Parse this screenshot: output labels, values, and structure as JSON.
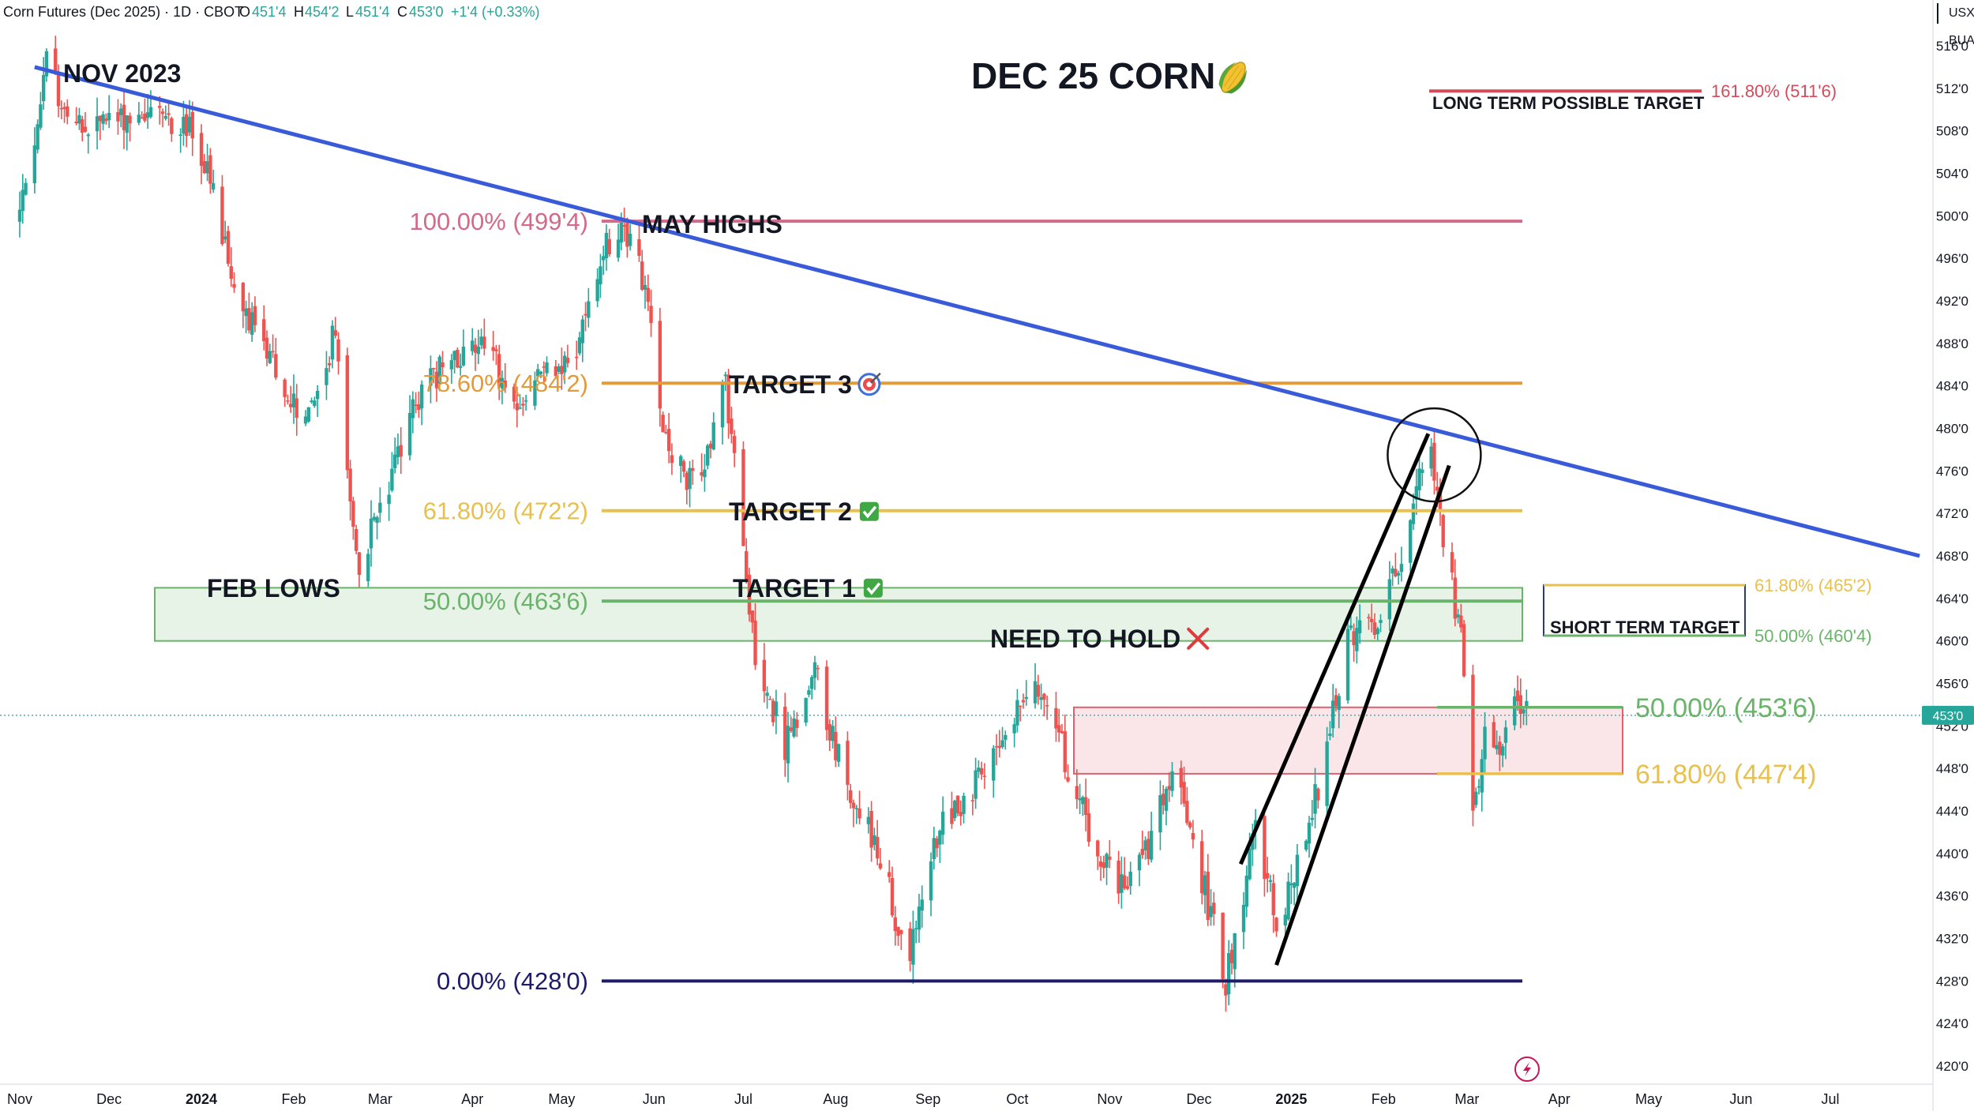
{
  "header": {
    "symbol": "Corn Futures (Dec 2025) · 1D · CBOT",
    "o_label": "O",
    "o_value": "451'4",
    "h_label": "H",
    "h_value": "454'2",
    "l_label": "L",
    "l_value": "451'4",
    "c_label": "C",
    "c_value": "453'0",
    "change": "+1'4 (+0.33%)"
  },
  "units": {
    "currency": "USX",
    "unit": "BUA"
  },
  "colors": {
    "up": "#26a69a",
    "down": "#ef5350",
    "trendline": "#3a5bd9",
    "fib_100": "#d46a8a",
    "fib_786": "#e39a3b",
    "fib_618": "#e8c04e",
    "fib_50": "#6ab36a",
    "fib_0": "#1e1b6b",
    "fib_1618": "#d64b5a"
  },
  "chart_data": {
    "type": "candlestick",
    "title": "DEC 25 CORN",
    "title_icon": "corn-icon",
    "x_axis_labels": [
      "Nov",
      "Dec",
      "2024",
      "Feb",
      "Mar",
      "Apr",
      "May",
      "Jun",
      "Jul",
      "Aug",
      "Sep",
      "Oct",
      "Nov",
      "Dec",
      "2025",
      "Feb",
      "Mar",
      "Apr",
      "May",
      "Jun",
      "Jul"
    ],
    "y_axis_labels": [
      "516'0",
      "512'0",
      "508'0",
      "504'0",
      "500'0",
      "496'0",
      "492'0",
      "488'0",
      "484'0",
      "480'0",
      "476'0",
      "472'0",
      "468'0",
      "464'0",
      "460'0",
      "456'0",
      "452'0",
      "448'0",
      "444'0",
      "440'0",
      "436'0",
      "432'0",
      "428'0",
      "424'0",
      "420'0"
    ],
    "y_range": [
      420,
      516
    ],
    "last_price": "453'0",
    "last_price_value": 453.0,
    "price_path": [
      [
        "2023-11-01",
        500.0
      ],
      [
        "2023-11-10",
        514.0
      ],
      [
        "2023-11-20",
        508.0
      ],
      [
        "2023-12-01",
        509.0
      ],
      [
        "2023-12-15",
        510.0
      ],
      [
        "2023-12-28",
        508.0
      ],
      [
        "2024-01-03",
        504.0
      ],
      [
        "2024-01-12",
        493.0
      ],
      [
        "2024-01-25",
        486.0
      ],
      [
        "2024-02-05",
        480.0
      ],
      [
        "2024-02-15",
        489.0
      ],
      [
        "2024-02-22",
        467.0
      ],
      [
        "2024-03-01",
        472.0
      ],
      [
        "2024-03-15",
        484.0
      ],
      [
        "2024-03-25",
        486.0
      ],
      [
        "2024-04-05",
        489.0
      ],
      [
        "2024-04-15",
        481.0
      ],
      [
        "2024-04-25",
        486.0
      ],
      [
        "2024-05-05",
        486.0
      ],
      [
        "2024-05-15",
        497.0
      ],
      [
        "2024-05-22",
        499.5
      ],
      [
        "2024-05-29",
        493.0
      ],
      [
        "2024-06-05",
        479.0
      ],
      [
        "2024-06-15",
        474.0
      ],
      [
        "2024-06-25",
        484.0
      ],
      [
        "2024-07-05",
        459.0
      ],
      [
        "2024-07-15",
        450.0
      ],
      [
        "2024-07-25",
        457.0
      ],
      [
        "2024-08-05",
        446.0
      ],
      [
        "2024-08-15",
        441.0
      ],
      [
        "2024-08-25",
        429.0
      ],
      [
        "2024-09-05",
        443.0
      ],
      [
        "2024-09-15",
        446.0
      ],
      [
        "2024-09-25",
        449.0
      ],
      [
        "2024-10-05",
        457.0
      ],
      [
        "2024-10-15",
        451.0
      ],
      [
        "2024-10-25",
        442.0
      ],
      [
        "2024-11-05",
        437.0
      ],
      [
        "2024-11-15",
        441.0
      ],
      [
        "2024-11-22",
        448.0
      ],
      [
        "2024-12-01",
        439.0
      ],
      [
        "2024-12-10",
        428.0
      ],
      [
        "2024-12-20",
        442.0
      ],
      [
        "2024-12-28",
        433.0
      ],
      [
        "2025-01-10",
        446.0
      ],
      [
        "2025-01-20",
        460.0
      ],
      [
        "2025-02-01",
        462.0
      ],
      [
        "2025-02-10",
        472.0
      ],
      [
        "2025-02-16",
        479.0
      ],
      [
        "2025-02-20",
        472.0
      ],
      [
        "2025-02-28",
        458.0
      ],
      [
        "2025-03-03",
        444.0
      ],
      [
        "2025-03-07",
        451.0
      ],
      [
        "2025-03-12",
        448.0
      ],
      [
        "2025-03-17",
        454.0
      ],
      [
        "2025-03-21",
        453.0
      ]
    ],
    "trendline": {
      "from": [
        "2023-11-06",
        514.0
      ],
      "to": [
        "2025-07-31",
        468.0
      ],
      "label": ""
    },
    "channel_lines": [
      {
        "from": [
          "2024-12-15",
          439.0
        ],
        "to": [
          "2025-02-16",
          479.5
        ]
      },
      {
        "from": [
          "2024-12-27",
          429.5
        ],
        "to": [
          "2025-02-23",
          476.5
        ]
      }
    ],
    "circle": {
      "center": [
        "2025-02-18",
        477.5
      ]
    },
    "fib_levels": [
      {
        "label": "100.00% (499'4)",
        "value": 499.5,
        "color": "#d46a8a",
        "extend": "long"
      },
      {
        "label": "78.60% (484'2)",
        "value": 484.25,
        "color": "#e39a3b",
        "extend": "long"
      },
      {
        "label": "61.80% (472'2)",
        "value": 472.25,
        "color": "#e8c04e",
        "extend": "long"
      },
      {
        "label": "50.00% (463'6)",
        "value": 463.75,
        "color": "#6ab36a",
        "extend": "long"
      },
      {
        "label": "0.00% (428'0)",
        "value": 428.0,
        "color": "#1e1b6b",
        "extend": "long"
      },
      {
        "label": "161.80% (511'6)",
        "value": 511.75,
        "color": "#d64b5a",
        "extend": "short"
      }
    ],
    "zones": [
      {
        "name": "need-to-hold-zone",
        "from": 460.0,
        "to": 465.0,
        "color": "#6ab36a"
      },
      {
        "name": "support-zone",
        "from": 447.5,
        "to": 453.75,
        "color": "#e06070"
      }
    ],
    "short_term_fibs": [
      {
        "label": "61.80% (465'2)",
        "value": 465.25,
        "color": "#e8c04e"
      },
      {
        "label": "50.00% (460'4)",
        "value": 460.5,
        "color": "#6ab36a"
      }
    ],
    "recent_fibs": [
      {
        "label": "50.00% (453'6)",
        "value": 453.75,
        "color": "#6ab36a"
      },
      {
        "label": "61.80% (447'4)",
        "value": 447.5,
        "color": "#e8c04e"
      }
    ],
    "annotations": [
      {
        "text": "NOV 2023"
      },
      {
        "text": "MAY HIGHS"
      },
      {
        "text": "FEB LOWS"
      },
      {
        "text": "TARGET 3",
        "icon": "target-icon"
      },
      {
        "text": "TARGET 2",
        "icon": "check-icon"
      },
      {
        "text": "TARGET 1",
        "icon": "check-icon"
      },
      {
        "text": "NEED TO HOLD",
        "icon": "cross-icon"
      },
      {
        "text": "LONG TERM POSSIBLE TARGET"
      },
      {
        "text": "SHORT TERM TARGET"
      }
    ]
  }
}
